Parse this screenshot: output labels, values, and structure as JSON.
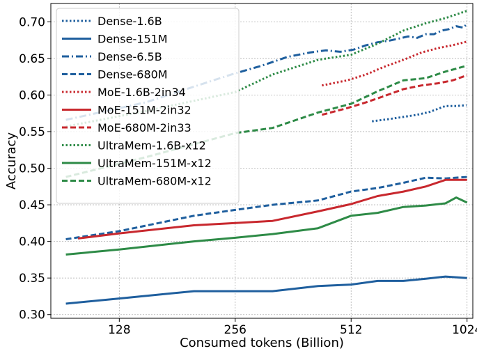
{
  "chart_data": {
    "type": "line",
    "title": "",
    "xlabel": "Consumed tokens (Billion)",
    "ylabel": "Accuracy",
    "x_scale": "log2",
    "xlim": [
      85,
      1060
    ],
    "ylim": [
      0.295,
      0.725
    ],
    "x_ticks": [
      128,
      256,
      512,
      1024
    ],
    "x_tick_labels": [
      "128",
      "256",
      "512",
      "1024"
    ],
    "y_ticks": [
      0.3,
      0.35,
      0.4,
      0.45,
      0.5,
      0.55,
      0.6,
      0.65,
      0.7
    ],
    "y_tick_labels": [
      "0.30",
      "0.35",
      "0.40",
      "0.45",
      "0.50",
      "0.55",
      "0.60",
      "0.65",
      "0.70"
    ],
    "grid": true,
    "legend_position": "upper-left",
    "colors": {
      "dense": "#1f5f9e",
      "moe": "#c8282e",
      "ultramem": "#2e8b47"
    },
    "series": [
      {
        "name": "Dense-1.6B",
        "color": "#1f5f9e",
        "style": "dotted",
        "x": [
          580,
          640,
          700,
          760,
          820,
          900,
          960,
          1020
        ],
        "y": [
          0.564,
          0.567,
          0.57,
          0.573,
          0.577,
          0.585,
          0.585,
          0.586
        ]
      },
      {
        "name": "Dense-151M",
        "color": "#1f5f9e",
        "style": "solid",
        "x": [
          93,
          128,
          200,
          256,
          320,
          420,
          512,
          600,
          700,
          800,
          900,
          1024
        ],
        "y": [
          0.315,
          0.322,
          0.332,
          0.332,
          0.332,
          0.339,
          0.341,
          0.346,
          0.346,
          0.349,
          0.352,
          0.35
        ]
      },
      {
        "name": "Dense-6.5B",
        "color": "#1f5f9e",
        "style": "dashdot",
        "x": [
          93,
          150,
          250,
          300,
          350,
          400,
          440,
          480,
          520,
          560,
          600,
          640,
          680,
          720,
          760,
          800,
          840,
          880,
          920,
          960,
          1000,
          1024
        ],
        "y": [
          0.566,
          0.59,
          0.628,
          0.64,
          0.652,
          0.658,
          0.661,
          0.659,
          0.662,
          0.668,
          0.672,
          0.674,
          0.677,
          0.68,
          0.678,
          0.683,
          0.683,
          0.688,
          0.69,
          0.694,
          0.692,
          0.697
        ]
      },
      {
        "name": "Dense-680M",
        "color": "#1f5f9e",
        "style": "dashed",
        "x": [
          93,
          128,
          200,
          256,
          320,
          420,
          512,
          600,
          700,
          800,
          900,
          1024
        ],
        "y": [
          0.403,
          0.414,
          0.435,
          0.443,
          0.45,
          0.456,
          0.468,
          0.473,
          0.48,
          0.487,
          0.486,
          0.488
        ]
      },
      {
        "name": "MoE-1.6B-2in34",
        "color": "#c8282e",
        "style": "dotted",
        "x": [
          430,
          500,
          560,
          620,
          700,
          780,
          860,
          940,
          1024
        ],
        "y": [
          0.613,
          0.62,
          0.628,
          0.638,
          0.648,
          0.658,
          0.664,
          0.668,
          0.673
        ]
      },
      {
        "name": "MoE-151M-2in32",
        "color": "#c8282e",
        "style": "solid",
        "x": [
          100,
          128,
          200,
          256,
          320,
          420,
          512,
          600,
          700,
          800,
          900,
          1024
        ],
        "y": [
          0.404,
          0.411,
          0.422,
          0.425,
          0.428,
          0.441,
          0.451,
          0.462,
          0.468,
          0.475,
          0.484,
          0.484
        ]
      },
      {
        "name": "MoE-680M-2in33",
        "color": "#c8282e",
        "style": "dashed",
        "x": [
          430,
          500,
          560,
          620,
          700,
          780,
          860,
          940,
          1024
        ],
        "y": [
          0.573,
          0.582,
          0.59,
          0.598,
          0.608,
          0.613,
          0.616,
          0.62,
          0.627
        ]
      },
      {
        "name": "UltraMem-1.6B-x12",
        "color": "#2e8b47",
        "style": "dotted",
        "x": [
          93,
          150,
          256,
          320,
          420,
          512,
          600,
          700,
          800,
          900,
          1024
        ],
        "y": [
          0.557,
          0.578,
          0.604,
          0.628,
          0.648,
          0.655,
          0.67,
          0.688,
          0.698,
          0.705,
          0.715
        ]
      },
      {
        "name": "UltraMem-151M-x12",
        "color": "#2e8b47",
        "style": "solid",
        "x": [
          93,
          128,
          200,
          256,
          320,
          420,
          512,
          600,
          700,
          800,
          900,
          960,
          1024
        ],
        "y": [
          0.382,
          0.389,
          0.4,
          0.405,
          0.41,
          0.418,
          0.435,
          0.439,
          0.447,
          0.449,
          0.452,
          0.46,
          0.453
        ]
      },
      {
        "name": "UltraMem-680M-x12",
        "color": "#2e8b47",
        "style": "dashed",
        "x": [
          93,
          150,
          256,
          320,
          420,
          512,
          600,
          700,
          800,
          900,
          1024
        ],
        "y": [
          0.488,
          0.515,
          0.548,
          0.555,
          0.576,
          0.588,
          0.605,
          0.62,
          0.623,
          0.632,
          0.64
        ]
      }
    ]
  }
}
